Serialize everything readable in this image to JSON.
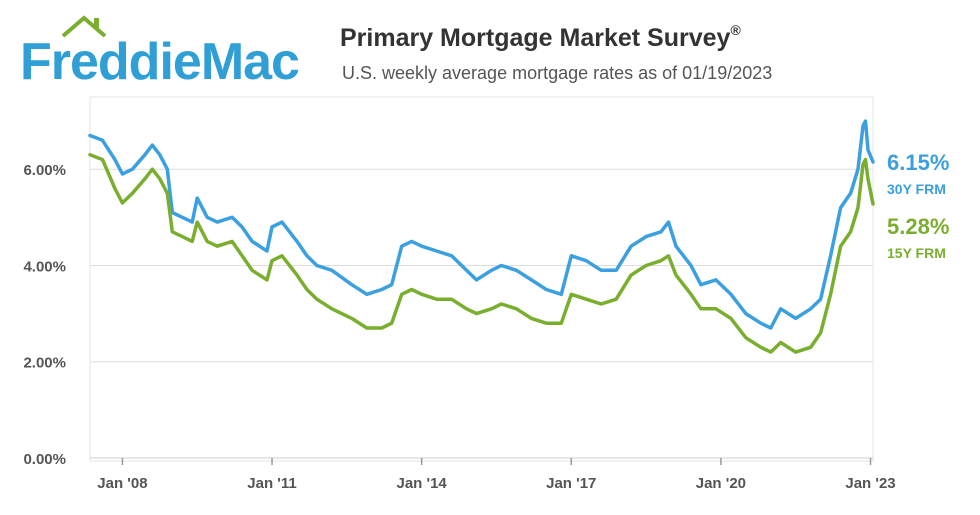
{
  "header": {
    "logo_text": "FreddieMac",
    "title": "Primary Mortgage Market Survey",
    "title_mark": "®",
    "subtitle": "U.S. weekly average mortgage rates as of 01/19/2023"
  },
  "callouts": {
    "rate_30y": "6.15%",
    "label_30y": "30Y FRM",
    "rate_15y": "5.28%",
    "label_15y": "15Y FRM"
  },
  "colors": {
    "brand": "#2f9fd6",
    "series_30y": "#3b9fe0",
    "series_15y": "#7aae2f",
    "grid": "#dddddd",
    "axis_text": "#555555"
  },
  "chart_data": {
    "type": "line",
    "title": "Primary Mortgage Market Survey",
    "subtitle": "U.S. weekly average mortgage rates as of 01/19/2023",
    "xlim": [
      2007.35,
      2023.05
    ],
    "ylim": [
      0,
      7.5
    ],
    "y_ticks": [
      0,
      2,
      4,
      6
    ],
    "y_tick_labels": [
      "0.00%",
      "2.00%",
      "4.00%",
      "6.00%"
    ],
    "x_ticks": [
      2008,
      2011,
      2014,
      2017,
      2020,
      2023
    ],
    "x_tick_labels": [
      "Jan '08",
      "Jan '11",
      "Jan '14",
      "Jan '17",
      "Jan '20",
      "Jan '23"
    ],
    "grid": true,
    "series": [
      {
        "name": "30Y FRM",
        "color": "#3b9fe0",
        "last_value": 6.15,
        "points": [
          [
            2007.35,
            6.7
          ],
          [
            2007.6,
            6.6
          ],
          [
            2007.85,
            6.2
          ],
          [
            2008.0,
            5.9
          ],
          [
            2008.2,
            6.0
          ],
          [
            2008.45,
            6.3
          ],
          [
            2008.6,
            6.5
          ],
          [
            2008.75,
            6.3
          ],
          [
            2008.9,
            6.0
          ],
          [
            2009.0,
            5.1
          ],
          [
            2009.2,
            5.0
          ],
          [
            2009.4,
            4.9
          ],
          [
            2009.5,
            5.4
          ],
          [
            2009.7,
            5.0
          ],
          [
            2009.9,
            4.9
          ],
          [
            2010.2,
            5.0
          ],
          [
            2010.4,
            4.8
          ],
          [
            2010.6,
            4.5
          ],
          [
            2010.9,
            4.3
          ],
          [
            2011.0,
            4.8
          ],
          [
            2011.2,
            4.9
          ],
          [
            2011.5,
            4.5
          ],
          [
            2011.7,
            4.2
          ],
          [
            2011.9,
            4.0
          ],
          [
            2012.2,
            3.9
          ],
          [
            2012.6,
            3.6
          ],
          [
            2012.9,
            3.4
          ],
          [
            2013.2,
            3.5
          ],
          [
            2013.4,
            3.6
          ],
          [
            2013.6,
            4.4
          ],
          [
            2013.8,
            4.5
          ],
          [
            2014.0,
            4.4
          ],
          [
            2014.3,
            4.3
          ],
          [
            2014.6,
            4.2
          ],
          [
            2014.9,
            3.9
          ],
          [
            2015.1,
            3.7
          ],
          [
            2015.4,
            3.9
          ],
          [
            2015.6,
            4.0
          ],
          [
            2015.9,
            3.9
          ],
          [
            2016.2,
            3.7
          ],
          [
            2016.5,
            3.5
          ],
          [
            2016.8,
            3.4
          ],
          [
            2017.0,
            4.2
          ],
          [
            2017.3,
            4.1
          ],
          [
            2017.6,
            3.9
          ],
          [
            2017.9,
            3.9
          ],
          [
            2018.2,
            4.4
          ],
          [
            2018.5,
            4.6
          ],
          [
            2018.8,
            4.7
          ],
          [
            2018.95,
            4.9
          ],
          [
            2019.1,
            4.4
          ],
          [
            2019.4,
            4.0
          ],
          [
            2019.6,
            3.6
          ],
          [
            2019.9,
            3.7
          ],
          [
            2020.2,
            3.4
          ],
          [
            2020.5,
            3.0
          ],
          [
            2020.8,
            2.8
          ],
          [
            2021.0,
            2.7
          ],
          [
            2021.2,
            3.1
          ],
          [
            2021.5,
            2.9
          ],
          [
            2021.8,
            3.1
          ],
          [
            2022.0,
            3.3
          ],
          [
            2022.2,
            4.2
          ],
          [
            2022.4,
            5.2
          ],
          [
            2022.6,
            5.5
          ],
          [
            2022.75,
            6.0
          ],
          [
            2022.85,
            6.9
          ],
          [
            2022.9,
            7.0
          ],
          [
            2022.95,
            6.4
          ],
          [
            2023.05,
            6.15
          ]
        ]
      },
      {
        "name": "15Y FRM",
        "color": "#7aae2f",
        "last_value": 5.28,
        "points": [
          [
            2007.35,
            6.3
          ],
          [
            2007.6,
            6.2
          ],
          [
            2007.85,
            5.6
          ],
          [
            2008.0,
            5.3
          ],
          [
            2008.2,
            5.5
          ],
          [
            2008.45,
            5.8
          ],
          [
            2008.6,
            6.0
          ],
          [
            2008.75,
            5.8
          ],
          [
            2008.9,
            5.5
          ],
          [
            2009.0,
            4.7
          ],
          [
            2009.2,
            4.6
          ],
          [
            2009.4,
            4.5
          ],
          [
            2009.5,
            4.9
          ],
          [
            2009.7,
            4.5
          ],
          [
            2009.9,
            4.4
          ],
          [
            2010.2,
            4.5
          ],
          [
            2010.4,
            4.2
          ],
          [
            2010.6,
            3.9
          ],
          [
            2010.9,
            3.7
          ],
          [
            2011.0,
            4.1
          ],
          [
            2011.2,
            4.2
          ],
          [
            2011.5,
            3.8
          ],
          [
            2011.7,
            3.5
          ],
          [
            2011.9,
            3.3
          ],
          [
            2012.2,
            3.1
          ],
          [
            2012.6,
            2.9
          ],
          [
            2012.9,
            2.7
          ],
          [
            2013.2,
            2.7
          ],
          [
            2013.4,
            2.8
          ],
          [
            2013.6,
            3.4
          ],
          [
            2013.8,
            3.5
          ],
          [
            2014.0,
            3.4
          ],
          [
            2014.3,
            3.3
          ],
          [
            2014.6,
            3.3
          ],
          [
            2014.9,
            3.1
          ],
          [
            2015.1,
            3.0
          ],
          [
            2015.4,
            3.1
          ],
          [
            2015.6,
            3.2
          ],
          [
            2015.9,
            3.1
          ],
          [
            2016.2,
            2.9
          ],
          [
            2016.5,
            2.8
          ],
          [
            2016.8,
            2.8
          ],
          [
            2017.0,
            3.4
          ],
          [
            2017.3,
            3.3
          ],
          [
            2017.6,
            3.2
          ],
          [
            2017.9,
            3.3
          ],
          [
            2018.2,
            3.8
          ],
          [
            2018.5,
            4.0
          ],
          [
            2018.8,
            4.1
          ],
          [
            2018.95,
            4.2
          ],
          [
            2019.1,
            3.8
          ],
          [
            2019.4,
            3.4
          ],
          [
            2019.6,
            3.1
          ],
          [
            2019.9,
            3.1
          ],
          [
            2020.2,
            2.9
          ],
          [
            2020.5,
            2.5
          ],
          [
            2020.8,
            2.3
          ],
          [
            2021.0,
            2.2
          ],
          [
            2021.2,
            2.4
          ],
          [
            2021.5,
            2.2
          ],
          [
            2021.8,
            2.3
          ],
          [
            2022.0,
            2.6
          ],
          [
            2022.2,
            3.4
          ],
          [
            2022.4,
            4.4
          ],
          [
            2022.6,
            4.7
          ],
          [
            2022.75,
            5.2
          ],
          [
            2022.85,
            6.1
          ],
          [
            2022.9,
            6.2
          ],
          [
            2022.95,
            5.8
          ],
          [
            2023.05,
            5.28
          ]
        ]
      }
    ]
  }
}
